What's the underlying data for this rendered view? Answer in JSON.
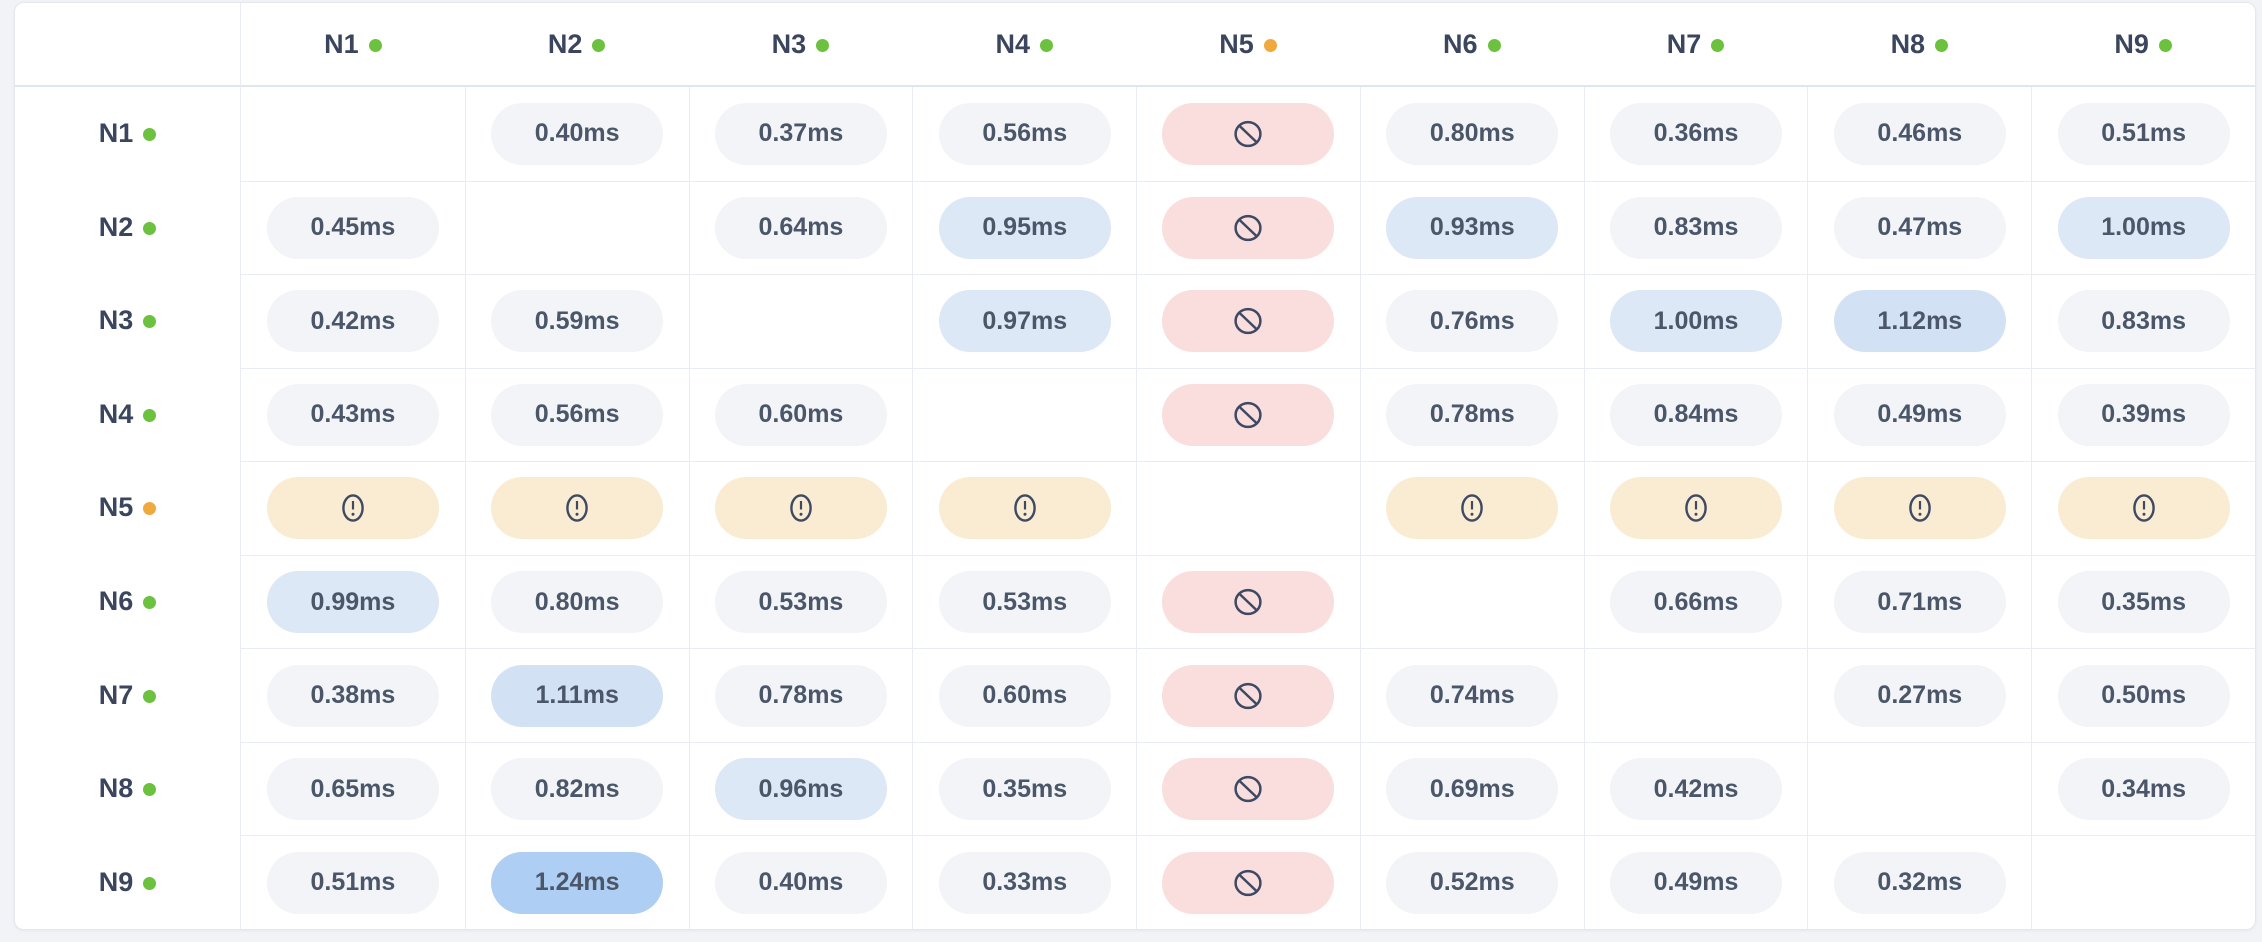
{
  "colors": {
    "page_bg": "#f1f3f7",
    "card_bg": "#ffffff",
    "card_border": "#e4e7ee",
    "grid_line": "#e9ecf2",
    "header_divider": "#e1e5ec",
    "label_text": "#3b465e",
    "value_text": "#4b5669",
    "icon_stroke": "#3e4a63",
    "status_dot": {
      "online": "#6cc13f",
      "degraded": "#f0a93c"
    },
    "cell_tones": {
      "normal": "#f2f4f8",
      "elevated": "#dce8f6",
      "high": "#d2e2f4",
      "peak": "#aecef3",
      "blocked": "#f9dedd",
      "warning": "#faecd2"
    }
  },
  "icons": {
    "blocked": "no-entry-icon",
    "warning": "alert-icon"
  },
  "matrix": {
    "columns": [
      {
        "label": "N1",
        "status": "online"
      },
      {
        "label": "N2",
        "status": "online"
      },
      {
        "label": "N3",
        "status": "online"
      },
      {
        "label": "N4",
        "status": "online"
      },
      {
        "label": "N5",
        "status": "degraded"
      },
      {
        "label": "N6",
        "status": "online"
      },
      {
        "label": "N7",
        "status": "online"
      },
      {
        "label": "N8",
        "status": "online"
      },
      {
        "label": "N9",
        "status": "online"
      }
    ],
    "rows": [
      {
        "label": "N1",
        "status": "online",
        "cells": [
          {
            "type": "self"
          },
          {
            "type": "latency",
            "value": "0.40ms",
            "tone": "normal"
          },
          {
            "type": "latency",
            "value": "0.37ms",
            "tone": "normal"
          },
          {
            "type": "latency",
            "value": "0.56ms",
            "tone": "normal"
          },
          {
            "type": "blocked"
          },
          {
            "type": "latency",
            "value": "0.80ms",
            "tone": "normal"
          },
          {
            "type": "latency",
            "value": "0.36ms",
            "tone": "normal"
          },
          {
            "type": "latency",
            "value": "0.46ms",
            "tone": "normal"
          },
          {
            "type": "latency",
            "value": "0.51ms",
            "tone": "normal"
          }
        ]
      },
      {
        "label": "N2",
        "status": "online",
        "cells": [
          {
            "type": "latency",
            "value": "0.45ms",
            "tone": "normal"
          },
          {
            "type": "self"
          },
          {
            "type": "latency",
            "value": "0.64ms",
            "tone": "normal"
          },
          {
            "type": "latency",
            "value": "0.95ms",
            "tone": "elevated"
          },
          {
            "type": "blocked"
          },
          {
            "type": "latency",
            "value": "0.93ms",
            "tone": "elevated"
          },
          {
            "type": "latency",
            "value": "0.83ms",
            "tone": "normal"
          },
          {
            "type": "latency",
            "value": "0.47ms",
            "tone": "normal"
          },
          {
            "type": "latency",
            "value": "1.00ms",
            "tone": "elevated"
          }
        ]
      },
      {
        "label": "N3",
        "status": "online",
        "cells": [
          {
            "type": "latency",
            "value": "0.42ms",
            "tone": "normal"
          },
          {
            "type": "latency",
            "value": "0.59ms",
            "tone": "normal"
          },
          {
            "type": "self"
          },
          {
            "type": "latency",
            "value": "0.97ms",
            "tone": "elevated"
          },
          {
            "type": "blocked"
          },
          {
            "type": "latency",
            "value": "0.76ms",
            "tone": "normal"
          },
          {
            "type": "latency",
            "value": "1.00ms",
            "tone": "elevated"
          },
          {
            "type": "latency",
            "value": "1.12ms",
            "tone": "high"
          },
          {
            "type": "latency",
            "value": "0.83ms",
            "tone": "normal"
          }
        ]
      },
      {
        "label": "N4",
        "status": "online",
        "cells": [
          {
            "type": "latency",
            "value": "0.43ms",
            "tone": "normal"
          },
          {
            "type": "latency",
            "value": "0.56ms",
            "tone": "normal"
          },
          {
            "type": "latency",
            "value": "0.60ms",
            "tone": "normal"
          },
          {
            "type": "self"
          },
          {
            "type": "blocked"
          },
          {
            "type": "latency",
            "value": "0.78ms",
            "tone": "normal"
          },
          {
            "type": "latency",
            "value": "0.84ms",
            "tone": "normal"
          },
          {
            "type": "latency",
            "value": "0.49ms",
            "tone": "normal"
          },
          {
            "type": "latency",
            "value": "0.39ms",
            "tone": "normal"
          }
        ]
      },
      {
        "label": "N5",
        "status": "degraded",
        "cells": [
          {
            "type": "warning"
          },
          {
            "type": "warning"
          },
          {
            "type": "warning"
          },
          {
            "type": "warning"
          },
          {
            "type": "self"
          },
          {
            "type": "warning"
          },
          {
            "type": "warning"
          },
          {
            "type": "warning"
          },
          {
            "type": "warning"
          }
        ]
      },
      {
        "label": "N6",
        "status": "online",
        "cells": [
          {
            "type": "latency",
            "value": "0.99ms",
            "tone": "elevated"
          },
          {
            "type": "latency",
            "value": "0.80ms",
            "tone": "normal"
          },
          {
            "type": "latency",
            "value": "0.53ms",
            "tone": "normal"
          },
          {
            "type": "latency",
            "value": "0.53ms",
            "tone": "normal"
          },
          {
            "type": "blocked"
          },
          {
            "type": "self"
          },
          {
            "type": "latency",
            "value": "0.66ms",
            "tone": "normal"
          },
          {
            "type": "latency",
            "value": "0.71ms",
            "tone": "normal"
          },
          {
            "type": "latency",
            "value": "0.35ms",
            "tone": "normal"
          }
        ]
      },
      {
        "label": "N7",
        "status": "online",
        "cells": [
          {
            "type": "latency",
            "value": "0.38ms",
            "tone": "normal"
          },
          {
            "type": "latency",
            "value": "1.11ms",
            "tone": "high"
          },
          {
            "type": "latency",
            "value": "0.78ms",
            "tone": "normal"
          },
          {
            "type": "latency",
            "value": "0.60ms",
            "tone": "normal"
          },
          {
            "type": "blocked"
          },
          {
            "type": "latency",
            "value": "0.74ms",
            "tone": "normal"
          },
          {
            "type": "self"
          },
          {
            "type": "latency",
            "value": "0.27ms",
            "tone": "normal"
          },
          {
            "type": "latency",
            "value": "0.50ms",
            "tone": "normal"
          }
        ]
      },
      {
        "label": "N8",
        "status": "online",
        "cells": [
          {
            "type": "latency",
            "value": "0.65ms",
            "tone": "normal"
          },
          {
            "type": "latency",
            "value": "0.82ms",
            "tone": "normal"
          },
          {
            "type": "latency",
            "value": "0.96ms",
            "tone": "elevated"
          },
          {
            "type": "latency",
            "value": "0.35ms",
            "tone": "normal"
          },
          {
            "type": "blocked"
          },
          {
            "type": "latency",
            "value": "0.69ms",
            "tone": "normal"
          },
          {
            "type": "latency",
            "value": "0.42ms",
            "tone": "normal"
          },
          {
            "type": "self"
          },
          {
            "type": "latency",
            "value": "0.34ms",
            "tone": "normal"
          }
        ]
      },
      {
        "label": "N9",
        "status": "online",
        "cells": [
          {
            "type": "latency",
            "value": "0.51ms",
            "tone": "normal"
          },
          {
            "type": "latency",
            "value": "1.24ms",
            "tone": "peak"
          },
          {
            "type": "latency",
            "value": "0.40ms",
            "tone": "normal"
          },
          {
            "type": "latency",
            "value": "0.33ms",
            "tone": "normal"
          },
          {
            "type": "blocked"
          },
          {
            "type": "latency",
            "value": "0.52ms",
            "tone": "normal"
          },
          {
            "type": "latency",
            "value": "0.49ms",
            "tone": "normal"
          },
          {
            "type": "latency",
            "value": "0.32ms",
            "tone": "normal"
          },
          {
            "type": "self"
          }
        ]
      }
    ]
  }
}
